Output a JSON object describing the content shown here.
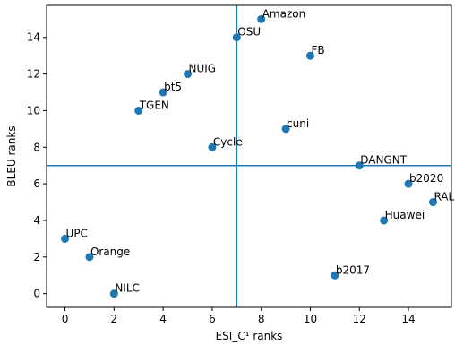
{
  "chart_data": {
    "type": "scatter",
    "xlabel": "ESI_C¹ ranks",
    "ylabel": "BLEU ranks",
    "xlim": [
      -0.75,
      15.75
    ],
    "ylim": [
      -0.75,
      15.75
    ],
    "xticks": [
      0,
      2,
      4,
      6,
      8,
      10,
      12,
      14
    ],
    "yticks": [
      0,
      2,
      4,
      6,
      8,
      10,
      12,
      14
    ],
    "grid": false,
    "point_color": "#1f77b4",
    "reference_lines": {
      "vertical_x": 7,
      "horizontal_y": 7,
      "color": "#1f77b4"
    },
    "points": [
      {
        "label": "UPC",
        "x": 0,
        "y": 3
      },
      {
        "label": "Orange",
        "x": 1,
        "y": 2
      },
      {
        "label": "NILC",
        "x": 2,
        "y": 0
      },
      {
        "label": "TGEN",
        "x": 3,
        "y": 10
      },
      {
        "label": "bt5",
        "x": 4,
        "y": 11
      },
      {
        "label": "NUIG",
        "x": 5,
        "y": 12
      },
      {
        "label": "Cycle",
        "x": 6,
        "y": 8
      },
      {
        "label": "OSU",
        "x": 7,
        "y": 14
      },
      {
        "label": "Amazon",
        "x": 8,
        "y": 15
      },
      {
        "label": "cuni",
        "x": 9,
        "y": 9
      },
      {
        "label": "FB",
        "x": 10,
        "y": 13
      },
      {
        "label": "b2017",
        "x": 11,
        "y": 1
      },
      {
        "label": "DANGNT",
        "x": 12,
        "y": 7
      },
      {
        "label": "Huawei",
        "x": 13,
        "y": 4
      },
      {
        "label": "b2020",
        "x": 14,
        "y": 6
      },
      {
        "label": "RAL",
        "x": 15,
        "y": 5
      }
    ]
  }
}
